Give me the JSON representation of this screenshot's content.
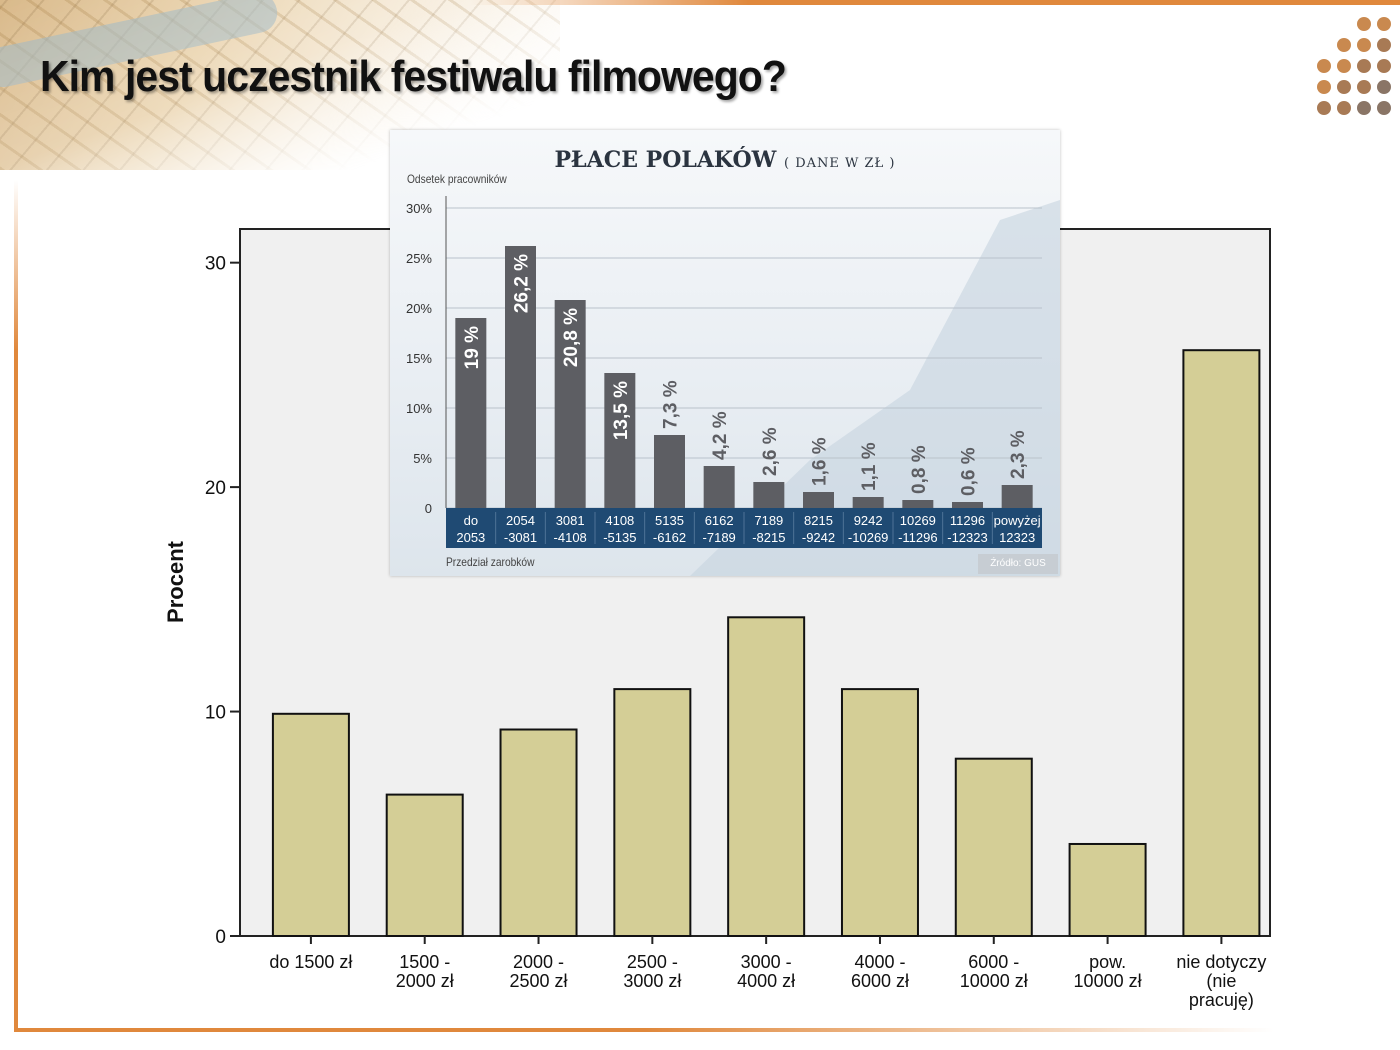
{
  "slide": {
    "title": "Kim jest uczestnik festiwalu filmowego?"
  },
  "colors": {
    "accent_orange": "#e0883c",
    "main_bar_fill": "#d4ce96",
    "main_plot_bg": "#f0f0f0",
    "inset_bar_fill": "#5d5e63",
    "inset_axis_band": "#1f4a73"
  },
  "chart_data": [
    {
      "type": "bar",
      "title": "",
      "xlabel": "",
      "ylabel": "Procent",
      "ylim": [
        0,
        31.5
      ],
      "yticks": [
        "0",
        "10",
        "20",
        "30"
      ],
      "ytick_values": [
        0,
        10,
        20,
        30
      ],
      "grid": false,
      "categories": [
        [
          "do 1500 zł"
        ],
        [
          "1500 -",
          "2000 zł"
        ],
        [
          "2000 -",
          "2500 zł"
        ],
        [
          "2500 -",
          "3000 zł"
        ],
        [
          "3000 -",
          "4000 zł"
        ],
        [
          "4000 -",
          "6000 zł"
        ],
        [
          "6000 -",
          "10000 zł"
        ],
        [
          "pow.",
          "10000 zł"
        ],
        [
          "nie dotyczy",
          "(nie",
          "pracuję)"
        ]
      ],
      "values": [
        9.9,
        6.3,
        9.2,
        11.0,
        14.2,
        11.0,
        7.9,
        4.1,
        26.1
      ]
    },
    {
      "type": "bar",
      "title": "PŁACE POLAKÓW",
      "subtitle": "( DANE W ZŁ )",
      "xlabel": "Przedział zarobków",
      "ylabel": "Odsetek pracowników",
      "source": "Źródło: GUS",
      "ylim": [
        0,
        30
      ],
      "yticks": [
        "0",
        "5%",
        "10%",
        "15%",
        "20%",
        "25%",
        "30%"
      ],
      "ytick_values": [
        0,
        5,
        10,
        15,
        20,
        25,
        30
      ],
      "grid": true,
      "categories": [
        [
          "do",
          "2053"
        ],
        [
          "2054",
          "-3081"
        ],
        [
          "3081",
          "-4108"
        ],
        [
          "4108",
          "-5135"
        ],
        [
          "5135",
          "-6162"
        ],
        [
          "6162",
          "-7189"
        ],
        [
          "7189",
          "-8215"
        ],
        [
          "8215",
          "-9242"
        ],
        [
          "9242",
          "-10269"
        ],
        [
          "10269",
          "-11296"
        ],
        [
          "11296",
          "-12323"
        ],
        [
          "powyżej",
          "12323"
        ]
      ],
      "values": [
        19,
        26.2,
        20.8,
        13.5,
        7.3,
        4.2,
        2.6,
        1.6,
        1.1,
        0.8,
        0.6,
        2.3
      ],
      "data_labels": [
        "19 %",
        "26,2 %",
        "20,8 %",
        "13,5 %",
        "7,3 %",
        "4,2 %",
        "2,6 %",
        "1,6 %",
        "1,1 %",
        "0,8 %",
        "0,6 %",
        "2,3 %"
      ]
    }
  ]
}
